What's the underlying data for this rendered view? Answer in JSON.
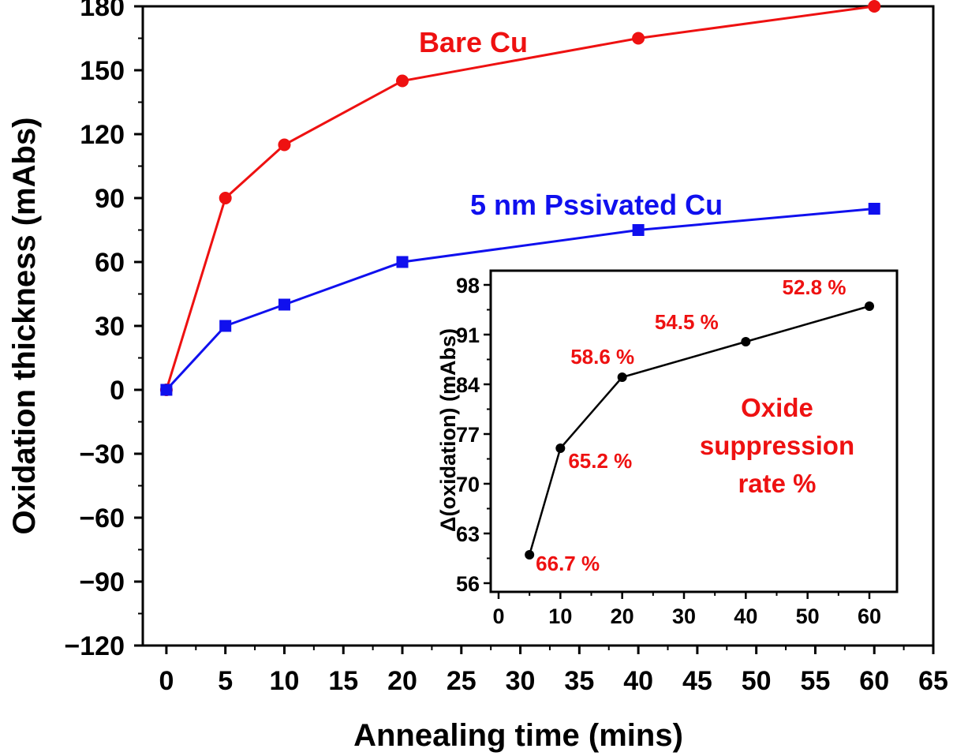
{
  "chart_data": [
    {
      "type": "line",
      "title": "",
      "xlabel": "Annealing time (mins)",
      "ylabel": "Oxidation thickness (mAbs)",
      "xlim": [
        -2,
        65
      ],
      "ylim": [
        -120,
        180
      ],
      "x_ticks": [
        0,
        5,
        10,
        15,
        20,
        25,
        30,
        35,
        40,
        45,
        50,
        55,
        60,
        65
      ],
      "x_tick_labels": [
        "0",
        "5",
        "10",
        "15",
        "20",
        "25",
        "30",
        "35",
        "40",
        "45",
        "50",
        "55",
        "60",
        "65"
      ],
      "y_ticks": [
        -120,
        -90,
        -60,
        -30,
        0,
        30,
        60,
        90,
        120,
        150,
        180
      ],
      "y_tick_labels": [
        "−120",
        "−90",
        "−60",
        "−30",
        "0",
        "30",
        "60",
        "90",
        "120",
        "150",
        "180"
      ],
      "x": [
        0,
        5,
        10,
        20,
        40,
        60
      ],
      "series": [
        {
          "name": "Bare Cu",
          "color": "#ee1111",
          "marker": "circle",
          "values": [
            0,
            90,
            115,
            145,
            165,
            180
          ]
        },
        {
          "name": "5 nm Pssivated Cu",
          "color": "#1010ee",
          "marker": "square",
          "values": [
            0,
            30,
            40,
            60,
            75,
            85
          ]
        }
      ],
      "legend": "inline labels near series"
    },
    {
      "type": "line",
      "title": "",
      "xlabel": "",
      "ylabel": "Δ(oxidation) (mAbs)",
      "xlim": [
        0,
        65
      ],
      "ylim": [
        55,
        99
      ],
      "x_ticks": [
        0,
        10,
        20,
        30,
        40,
        50,
        60
      ],
      "x_tick_labels": [
        "0",
        "10",
        "20",
        "30",
        "40",
        "50",
        "60"
      ],
      "y_ticks": [
        56,
        63,
        70,
        77,
        84,
        91,
        98
      ],
      "y_tick_labels": [
        "56",
        "63",
        "70",
        "77",
        "84",
        "91",
        "98"
      ],
      "x": [
        5,
        10,
        20,
        40,
        60
      ],
      "series": [
        {
          "name": "Δ(oxidation)",
          "color": "#000000",
          "marker": "circle",
          "values": [
            60,
            75,
            85,
            90,
            95
          ]
        }
      ],
      "point_labels": [
        "66.7 %",
        "65.2 %",
        "58.6 %",
        "54.5 %",
        "52.8 %"
      ],
      "point_label_color": "#ee1111",
      "annotation_lines": [
        "Oxide",
        "suppression",
        "rate %"
      ]
    }
  ]
}
